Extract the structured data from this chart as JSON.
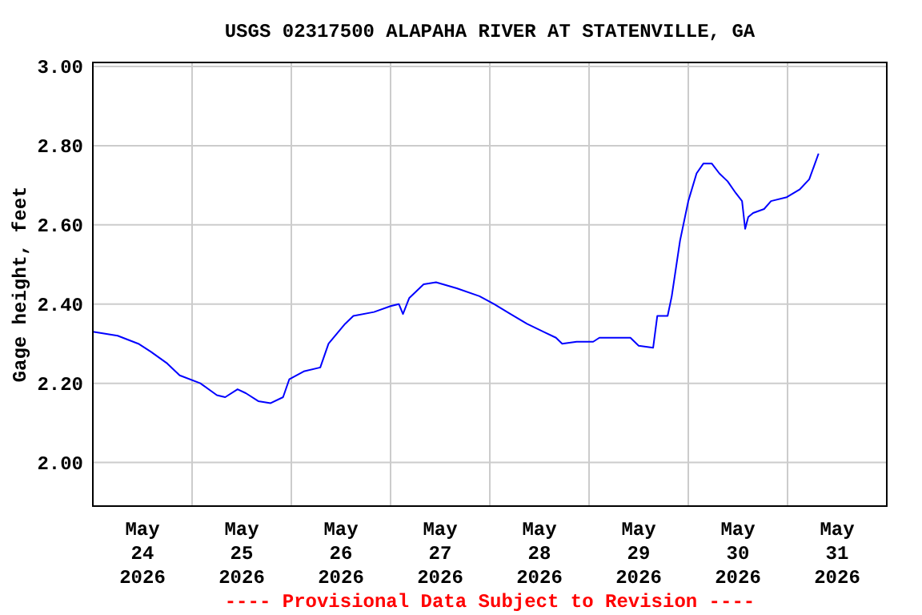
{
  "chart_data": {
    "type": "line",
    "title": "USGS 02317500 ALAPAHA RIVER AT STATENVILLE, GA",
    "ylabel": "Gage height, feet",
    "annotations": [
      "---- Provisional Data Subject to Revision ----"
    ],
    "xlim": [
      "2026-05-24T00:00",
      "2026-06-01T00:00"
    ],
    "xticks": [
      {
        "value": "2026-05-24T12:00",
        "label": "May\n24\n2026"
      },
      {
        "value": "2026-05-25T00:00",
        "label": null
      },
      {
        "value": "2026-05-25T12:00",
        "label": "May\n25\n2026"
      },
      {
        "value": "2026-05-26T00:00",
        "label": null
      },
      {
        "value": "2026-05-26T12:00",
        "label": "May\n26\n2026"
      },
      {
        "value": "2026-05-27T00:00",
        "label": null
      },
      {
        "value": "2026-05-27T12:00",
        "label": "May\n27\n2026"
      },
      {
        "value": "2026-05-28T00:00",
        "label": null
      },
      {
        "value": "2026-05-28T12:00",
        "label": "May\n28\n2026"
      },
      {
        "value": "2026-05-29T00:00",
        "label": null
      },
      {
        "value": "2026-05-29T12:00",
        "label": "May\n29\n2026"
      },
      {
        "value": "2026-05-30T00:00",
        "label": null
      },
      {
        "value": "2026-05-30T12:00",
        "label": "May\n30\n2026"
      },
      {
        "value": "2026-05-31T00:00",
        "label": null
      },
      {
        "value": "2026-05-31T12:00",
        "label": "May\n31\n2026"
      }
    ],
    "ylim": [
      1.89,
      3.01
    ],
    "yticks": [
      {
        "value": 2.0,
        "label": "2.00"
      },
      {
        "value": 2.2,
        "label": "2.20"
      },
      {
        "value": 2.4,
        "label": "2.40"
      },
      {
        "value": 2.6,
        "label": "2.60"
      },
      {
        "value": 2.8,
        "label": "2.80"
      },
      {
        "value": 3.0,
        "label": "3.00"
      }
    ],
    "grid": true,
    "marker": "none",
    "line_style": "solid",
    "series": [
      {
        "color": "#0000ff",
        "x": [
          "2026-05-24T00:00",
          "2026-05-24T06:00",
          "2026-05-24T11:00",
          "2026-05-24T14:00",
          "2026-05-24T18:00",
          "2026-05-24T21:00",
          "2026-05-25T02:00",
          "2026-05-25T06:00",
          "2026-05-25T08:00",
          "2026-05-25T11:00",
          "2026-05-25T13:00",
          "2026-05-25T16:00",
          "2026-05-25T19:00",
          "2026-05-25T22:00",
          "2026-05-25T23:30",
          "2026-05-26T03:00",
          "2026-05-26T07:00",
          "2026-05-26T09:00",
          "2026-05-26T13:00",
          "2026-05-26T15:00",
          "2026-05-26T20:00",
          "2026-05-27T00:00",
          "2026-05-27T02:00",
          "2026-05-27T03:00",
          "2026-05-27T04:30",
          "2026-05-27T08:00",
          "2026-05-27T11:00",
          "2026-05-27T16:00",
          "2026-05-27T21:30",
          "2026-05-28T01:00",
          "2026-05-28T05:00",
          "2026-05-28T09:00",
          "2026-05-28T13:00",
          "2026-05-28T16:00",
          "2026-05-28T17:30",
          "2026-05-28T21:00",
          "2026-05-29T01:00",
          "2026-05-29T02:30",
          "2026-05-29T10:00",
          "2026-05-29T12:00",
          "2026-05-29T15:30",
          "2026-05-29T16:30",
          "2026-05-29T19:00",
          "2026-05-29T20:00",
          "2026-05-29T22:00",
          "2026-05-30T00:00",
          "2026-05-30T02:00",
          "2026-05-30T03:40",
          "2026-05-30T05:40",
          "2026-05-30T07:30",
          "2026-05-30T09:30",
          "2026-05-30T11:30",
          "2026-05-30T13:00",
          "2026-05-30T13:45",
          "2026-05-30T14:30",
          "2026-05-30T15:40",
          "2026-05-30T18:20",
          "2026-05-30T20:00",
          "2026-05-30T23:50",
          "2026-05-31T03:00",
          "2026-05-31T05:15",
          "2026-05-31T07:30"
        ],
        "values": [
          2.33,
          2.32,
          2.3,
          2.28,
          2.25,
          2.22,
          2.2,
          2.17,
          2.165,
          2.185,
          2.175,
          2.155,
          2.15,
          2.165,
          2.21,
          2.23,
          2.24,
          2.3,
          2.35,
          2.37,
          2.38,
          2.395,
          2.4,
          2.375,
          2.415,
          2.45,
          2.455,
          2.44,
          2.42,
          2.4,
          2.375,
          2.35,
          2.33,
          2.315,
          2.3,
          2.305,
          2.305,
          2.315,
          2.315,
          2.295,
          2.29,
          2.37,
          2.37,
          2.42,
          2.56,
          2.66,
          2.73,
          2.755,
          2.755,
          2.73,
          2.71,
          2.68,
          2.66,
          2.59,
          2.62,
          2.63,
          2.64,
          2.66,
          2.67,
          2.69,
          2.715,
          2.78
        ]
      }
    ]
  }
}
